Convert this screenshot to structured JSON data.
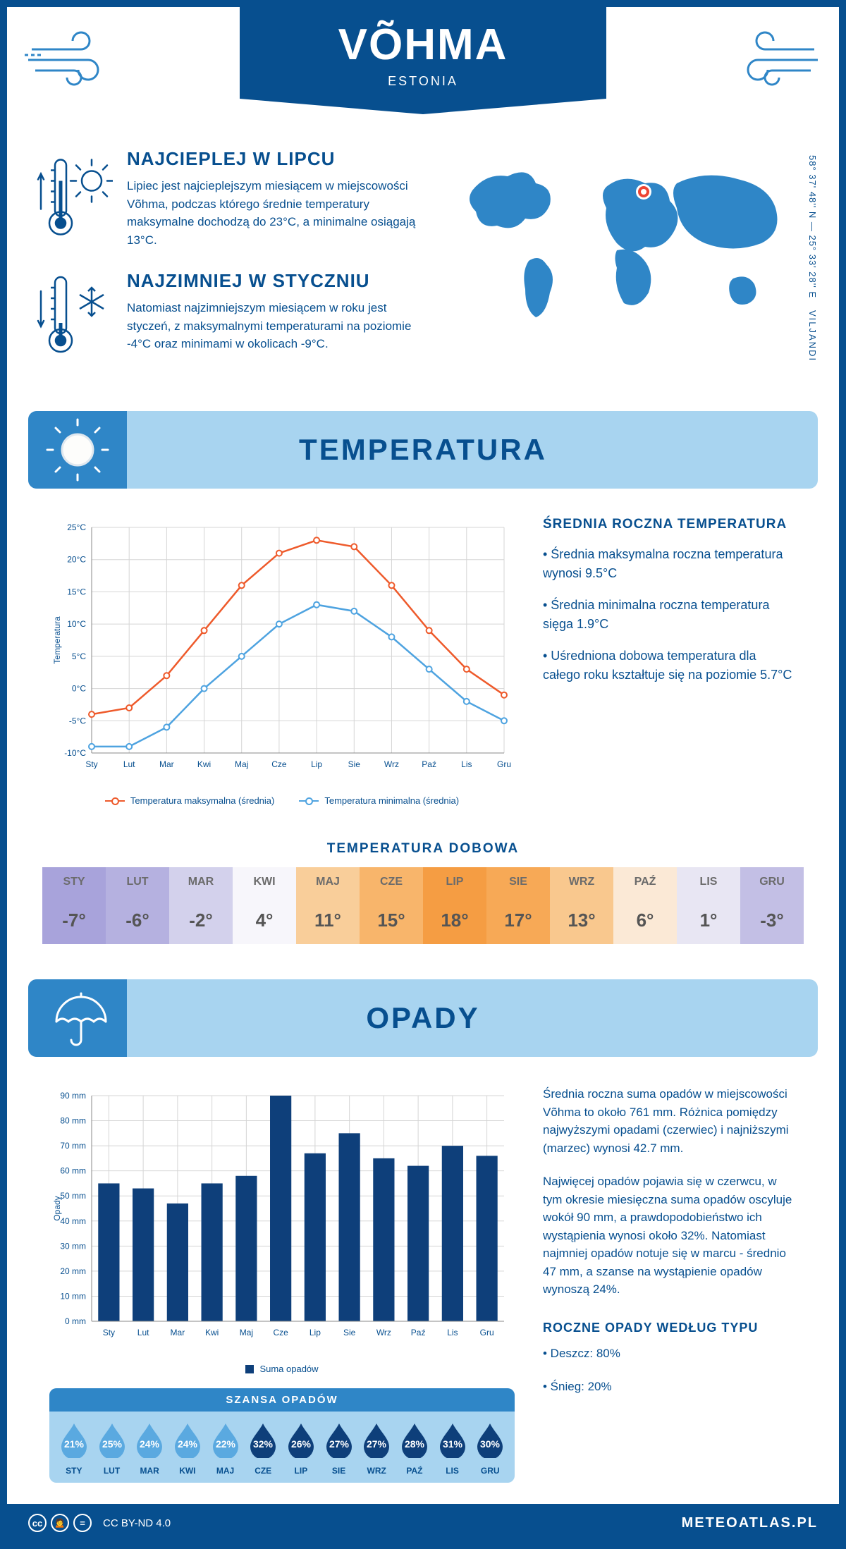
{
  "header": {
    "title": "VÕHMA",
    "country": "ESTONIA"
  },
  "coords": "58° 37' 48'' N — 25° 33' 28'' E",
  "region": "VILJANDI",
  "facts": {
    "hot": {
      "title": "NAJCIEPLEJ W LIPCU",
      "text": "Lipiec jest najcieplejszym miesiącem w miejscowości Võhma, podczas którego średnie temperatury maksymalne dochodzą do 23°C, a minimalne osiągają 13°C."
    },
    "cold": {
      "title": "NAJZIMNIEJ W STYCZNIU",
      "text": "Natomiast najzimniejszym miesiącem w roku jest styczeń, z maksymalnymi temperaturami na poziomie -4°C oraz minimami w okolicach -9°C."
    }
  },
  "sections": {
    "temp": "TEMPERATURA",
    "precip": "OPADY"
  },
  "months": [
    "Sty",
    "Lut",
    "Mar",
    "Kwi",
    "Maj",
    "Cze",
    "Lip",
    "Sie",
    "Wrz",
    "Paź",
    "Lis",
    "Gru"
  ],
  "months_upper": [
    "STY",
    "LUT",
    "MAR",
    "KWI",
    "MAJ",
    "CZE",
    "LIP",
    "SIE",
    "WRZ",
    "PAŹ",
    "LIS",
    "GRU"
  ],
  "temp_chart": {
    "type": "line",
    "ylabel": "Temperatura",
    "ylim": [
      -10,
      25
    ],
    "ytick_step": 5,
    "ytick_suffix": "°C",
    "grid_color": "#d5d5d5",
    "series": [
      {
        "name": "Temperatura maksymalna (średnia)",
        "color": "#ee5a2b",
        "values": [
          -4,
          -3,
          2,
          9,
          16,
          21,
          23,
          22,
          16,
          9,
          3,
          -1
        ]
      },
      {
        "name": "Temperatura minimalna (średnia)",
        "color": "#4ea3e0",
        "values": [
          -9,
          -9,
          -6,
          0,
          5,
          10,
          13,
          12,
          8,
          3,
          -2,
          -5
        ]
      }
    ]
  },
  "temp_info": {
    "title": "ŚREDNIA ROCZNA TEMPERATURA",
    "bullets": [
      "• Średnia maksymalna roczna temperatura wynosi 9.5°C",
      "• Średnia minimalna roczna temperatura sięga 1.9°C",
      "• Uśredniona dobowa temperatura dla całego roku kształtuje się na poziomie 5.7°C"
    ]
  },
  "daily": {
    "title": "TEMPERATURA DOBOWA",
    "values": [
      -7,
      -6,
      -2,
      4,
      11,
      15,
      18,
      17,
      13,
      6,
      1,
      -3
    ],
    "bg_colors": [
      "#a8a3db",
      "#b5b1e0",
      "#d3d1ec",
      "#f7f6fb",
      "#f9ce9a",
      "#f8b56b",
      "#f59d43",
      "#f7a956",
      "#f9c88e",
      "#fbe9d6",
      "#e8e6f3",
      "#c3bfe5"
    ],
    "text_colors": [
      "#6b6b6b",
      "#6b6b6b",
      "#6b6b6b",
      "#6b6b6b",
      "#6b6b6b",
      "#6b6b6b",
      "#6b6b6b",
      "#6b6b6b",
      "#6b6b6b",
      "#6b6b6b",
      "#6b6b6b",
      "#6b6b6b"
    ]
  },
  "precip_chart": {
    "type": "bar",
    "ylabel": "Opady",
    "ylim": [
      0,
      90
    ],
    "ytick_step": 10,
    "ytick_suffix": " mm",
    "bar_color": "#0e3f7a",
    "grid_color": "#d5d5d5",
    "values": [
      55,
      53,
      47,
      55,
      58,
      90,
      67,
      75,
      65,
      62,
      70,
      66
    ],
    "legend": "Suma opadów"
  },
  "precip_text": {
    "p1": "Średnia roczna suma opadów w miejscowości Võhma to około 761 mm. Różnica pomiędzy najwyższymi opadami (czerwiec) i najniższymi (marzec) wynosi 42.7 mm.",
    "p2": "Najwięcej opadów pojawia się w czerwcu, w tym okresie miesięczna suma opadów oscyluje wokół 90 mm, a prawdopodobieństwo ich wystąpienia wynosi około 32%. Natomiast najmniej opadów notuje się w marcu - średnio 47 mm, a szanse na wystąpienie opadów wynoszą 24%.",
    "type_title": "ROCZNE OPADY WEDŁUG TYPU",
    "type_bullets": [
      "• Deszcz: 80%",
      "• Śnieg: 20%"
    ]
  },
  "chance": {
    "title": "SZANSA OPADÓW",
    "values": [
      21,
      25,
      24,
      24,
      22,
      32,
      26,
      27,
      27,
      28,
      31,
      30
    ],
    "drop_light": "#5aa9e0",
    "drop_dark": "#0e3f7a"
  },
  "footer": {
    "license": "CC BY-ND 4.0",
    "brand": "METEOATLAS.PL"
  },
  "colors": {
    "primary": "#074f8f",
    "accent": "#2f86c7",
    "light": "#a8d4f0"
  }
}
